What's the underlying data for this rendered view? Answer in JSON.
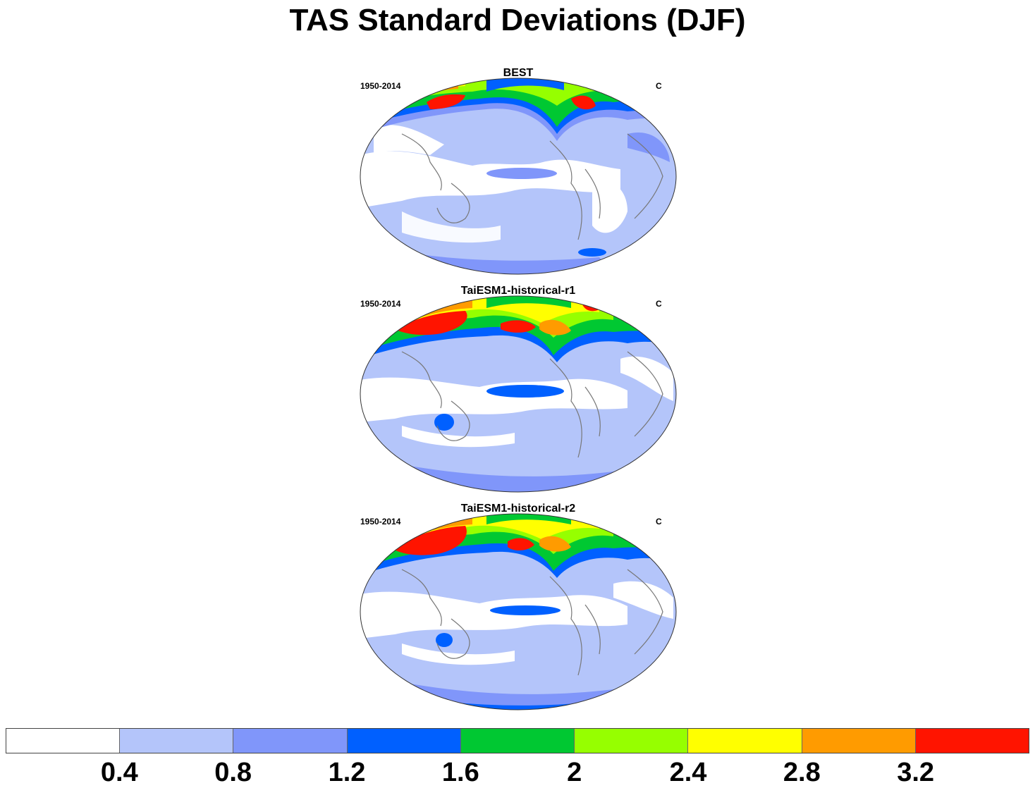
{
  "title": "TAS Standard Deviations (DJF)",
  "panels": [
    {
      "name": "BEST",
      "period": "1950-2014",
      "units": "C"
    },
    {
      "name": "TaiESM1-historical-r1",
      "period": "1950-2014",
      "units": "C"
    },
    {
      "name": "TaiESM1-historical-r2",
      "period": "1950-2014",
      "units": "C"
    }
  ],
  "colorbar": {
    "colors": [
      "#ffffff",
      "#b4c5fa",
      "#8096fa",
      "#0060ff",
      "#00c832",
      "#96ff00",
      "#ffff00",
      "#ff9b00",
      "#ff1400"
    ],
    "labels": [
      "0.4",
      "0.8",
      "1.2",
      "1.6",
      "2",
      "2.4",
      "2.8",
      "3.2"
    ]
  },
  "projection": "robinson-pacific-centered"
}
